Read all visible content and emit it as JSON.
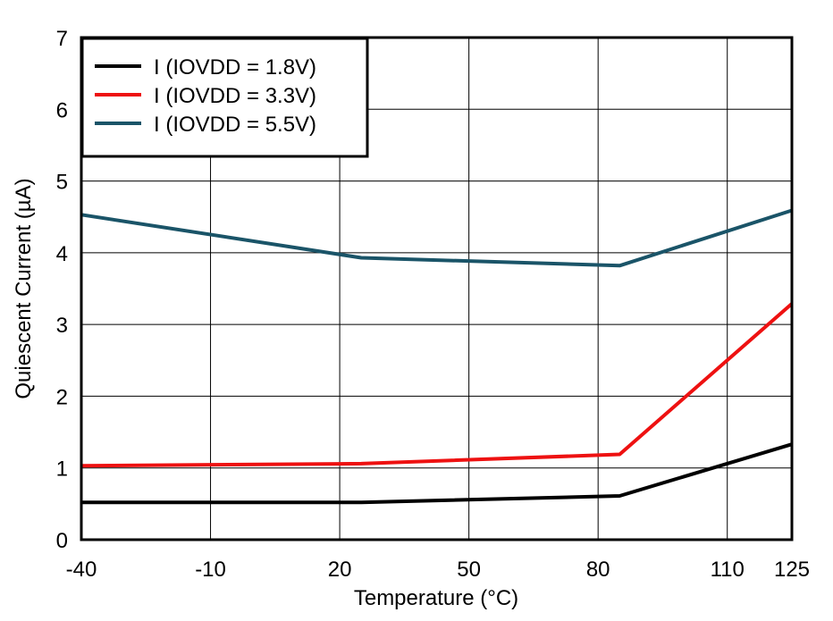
{
  "chart_data": {
    "type": "line",
    "title": "",
    "xlabel": "Temperature (°C)",
    "ylabel": "Quiescent Current (µA)",
    "xlim": [
      -40,
      125
    ],
    "ylim": [
      0,
      7
    ],
    "x_ticks": [
      -40,
      -10,
      20,
      50,
      80,
      110,
      125
    ],
    "x_tick_labels": [
      "-40",
      "-10",
      "20",
      "50",
      "80",
      "110",
      "125"
    ],
    "y_ticks": [
      0,
      1,
      2,
      3,
      4,
      5,
      6,
      7
    ],
    "y_tick_labels": [
      "0",
      "1",
      "2",
      "3",
      "4",
      "5",
      "6",
      "7"
    ],
    "grid": true,
    "legend_position": "top-left",
    "series": [
      {
        "name": "I (IOVDD = 1.8V)",
        "color": "#000000",
        "x": [
          -40,
          25,
          85,
          125
        ],
        "y": [
          0.52,
          0.52,
          0.61,
          1.33
        ]
      },
      {
        "name": "I (IOVDD = 3.3V)",
        "color": "#ee1111",
        "x": [
          -40,
          25,
          85,
          125
        ],
        "y": [
          1.03,
          1.06,
          1.19,
          3.29
        ]
      },
      {
        "name": "I (IOVDD = 5.5V)",
        "color": "#1a5468",
        "x": [
          -40,
          25,
          85,
          125
        ],
        "y": [
          4.53,
          3.93,
          3.82,
          4.59
        ]
      }
    ]
  }
}
